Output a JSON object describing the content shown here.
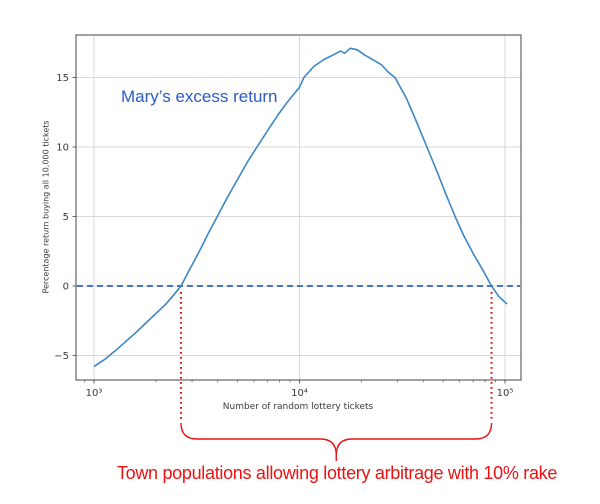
{
  "colors": {
    "series_blue": "#3c86c6",
    "dashed_blue": "#2e5fc8",
    "annotation_blue": "#2a5bc8",
    "red": "#ee1111",
    "grid": "#d9d9d9",
    "spine": "#555555",
    "tick_text": "#3a3a3a"
  },
  "chart_data": {
    "type": "line",
    "title": "",
    "xlabel": "Number of random lottery tickets",
    "ylabel": "Percentage return buying all 10,000 tickets",
    "x_scale": "log",
    "xlim": [
      820,
      120000
    ],
    "ylim": [
      -6.8,
      18.1
    ],
    "grid": true,
    "x_ticks": [
      {
        "value": 1000,
        "label": "10³"
      },
      {
        "value": 10000,
        "label": "10⁴"
      },
      {
        "value": 100000,
        "label": "10⁵"
      }
    ],
    "y_ticks": [
      {
        "value": 15,
        "label": "15"
      },
      {
        "value": 10,
        "label": "10"
      },
      {
        "value": 5,
        "label": "5"
      },
      {
        "value": 0,
        "label": "0"
      },
      {
        "value": -5,
        "label": "−5"
      }
    ],
    "series": [
      {
        "name": "Mary's excess return",
        "points": [
          [
            1000,
            -5.8
          ],
          [
            1122,
            -5.3
          ],
          [
            1259,
            -4.7
          ],
          [
            1413,
            -4.05
          ],
          [
            1585,
            -3.4
          ],
          [
            1778,
            -2.7
          ],
          [
            1995,
            -2.0
          ],
          [
            2239,
            -1.3
          ],
          [
            2455,
            -0.6
          ],
          [
            2650,
            0.0
          ],
          [
            2950,
            1.3
          ],
          [
            3310,
            2.7
          ],
          [
            3630,
            3.9
          ],
          [
            3980,
            5.0
          ],
          [
            4470,
            6.4
          ],
          [
            5010,
            7.7
          ],
          [
            5620,
            9.0
          ],
          [
            6210,
            10.0
          ],
          [
            7080,
            11.3
          ],
          [
            7940,
            12.4
          ],
          [
            8910,
            13.4
          ],
          [
            10000,
            14.3
          ],
          [
            10500,
            15.0
          ],
          [
            11750,
            15.8
          ],
          [
            13180,
            16.3
          ],
          [
            14450,
            16.6
          ],
          [
            15850,
            16.9
          ],
          [
            16600,
            16.75
          ],
          [
            17620,
            17.1
          ],
          [
            19050,
            17.0
          ],
          [
            20890,
            16.6
          ],
          [
            22910,
            16.25
          ],
          [
            25120,
            15.9
          ],
          [
            26920,
            15.4
          ],
          [
            29170,
            15.0
          ],
          [
            33110,
            13.5
          ],
          [
            37150,
            11.8
          ],
          [
            41690,
            10.0
          ],
          [
            46770,
            8.2
          ],
          [
            51290,
            6.7
          ],
          [
            57150,
            5.0
          ],
          [
            63100,
            3.6
          ],
          [
            70790,
            2.2
          ],
          [
            77620,
            1.2
          ],
          [
            86000,
            0.0
          ],
          [
            93330,
            -0.75
          ],
          [
            102300,
            -1.3
          ]
        ]
      }
    ],
    "reference_lines": {
      "zero_line": {
        "y": 0,
        "style": "dashed"
      },
      "vertical_markers": [
        {
          "x": 2650,
          "style": "dotted"
        },
        {
          "x": 86000,
          "style": "dotted"
        }
      ]
    },
    "annotations": {
      "series_label": "Mary’s excess return",
      "bracket_label": "Town populations allowing lottery arbitrage with 10% rake"
    }
  }
}
